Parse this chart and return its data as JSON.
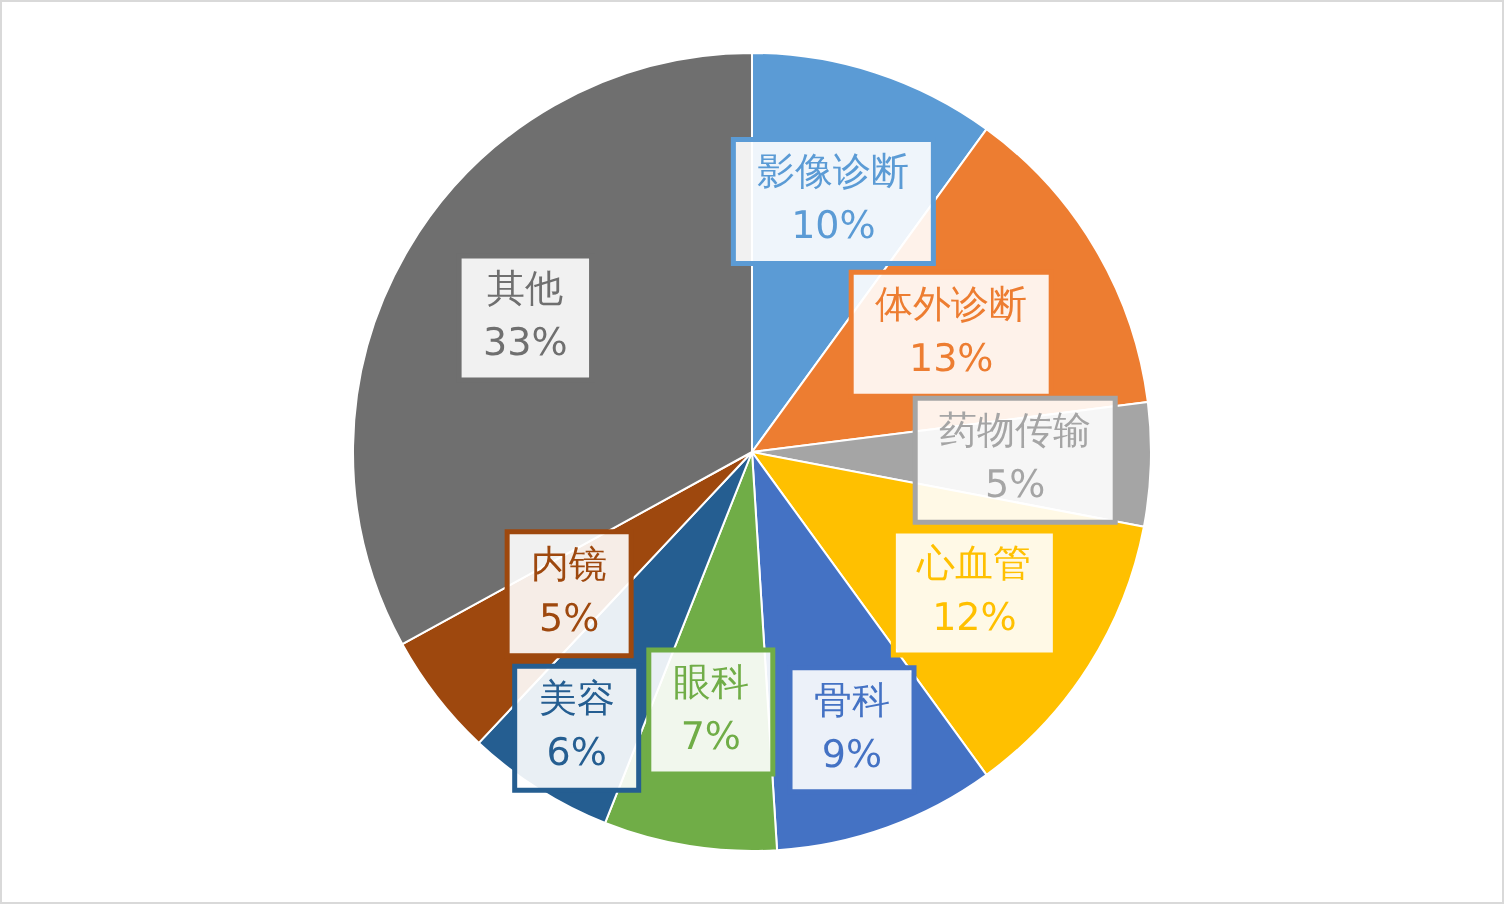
{
  "chart_data": {
    "type": "pie",
    "categories": [
      "影像诊断",
      "体外诊断",
      "药物传输",
      "心血管",
      "骨科",
      "眼科",
      "美容",
      "内镜",
      "其他"
    ],
    "values": [
      10,
      13,
      5,
      12,
      9,
      7,
      6,
      5,
      33
    ],
    "value_labels": [
      "10%",
      "13%",
      "5%",
      "12%",
      "9%",
      "7%",
      "6%",
      "5%",
      "33%"
    ],
    "colors": [
      "#5b9bd5",
      "#ed7d31",
      "#a5a5a5",
      "#ffc000",
      "#4472c4",
      "#70ad47",
      "#255e91",
      "#9e480e",
      "#6f6f6f"
    ]
  }
}
